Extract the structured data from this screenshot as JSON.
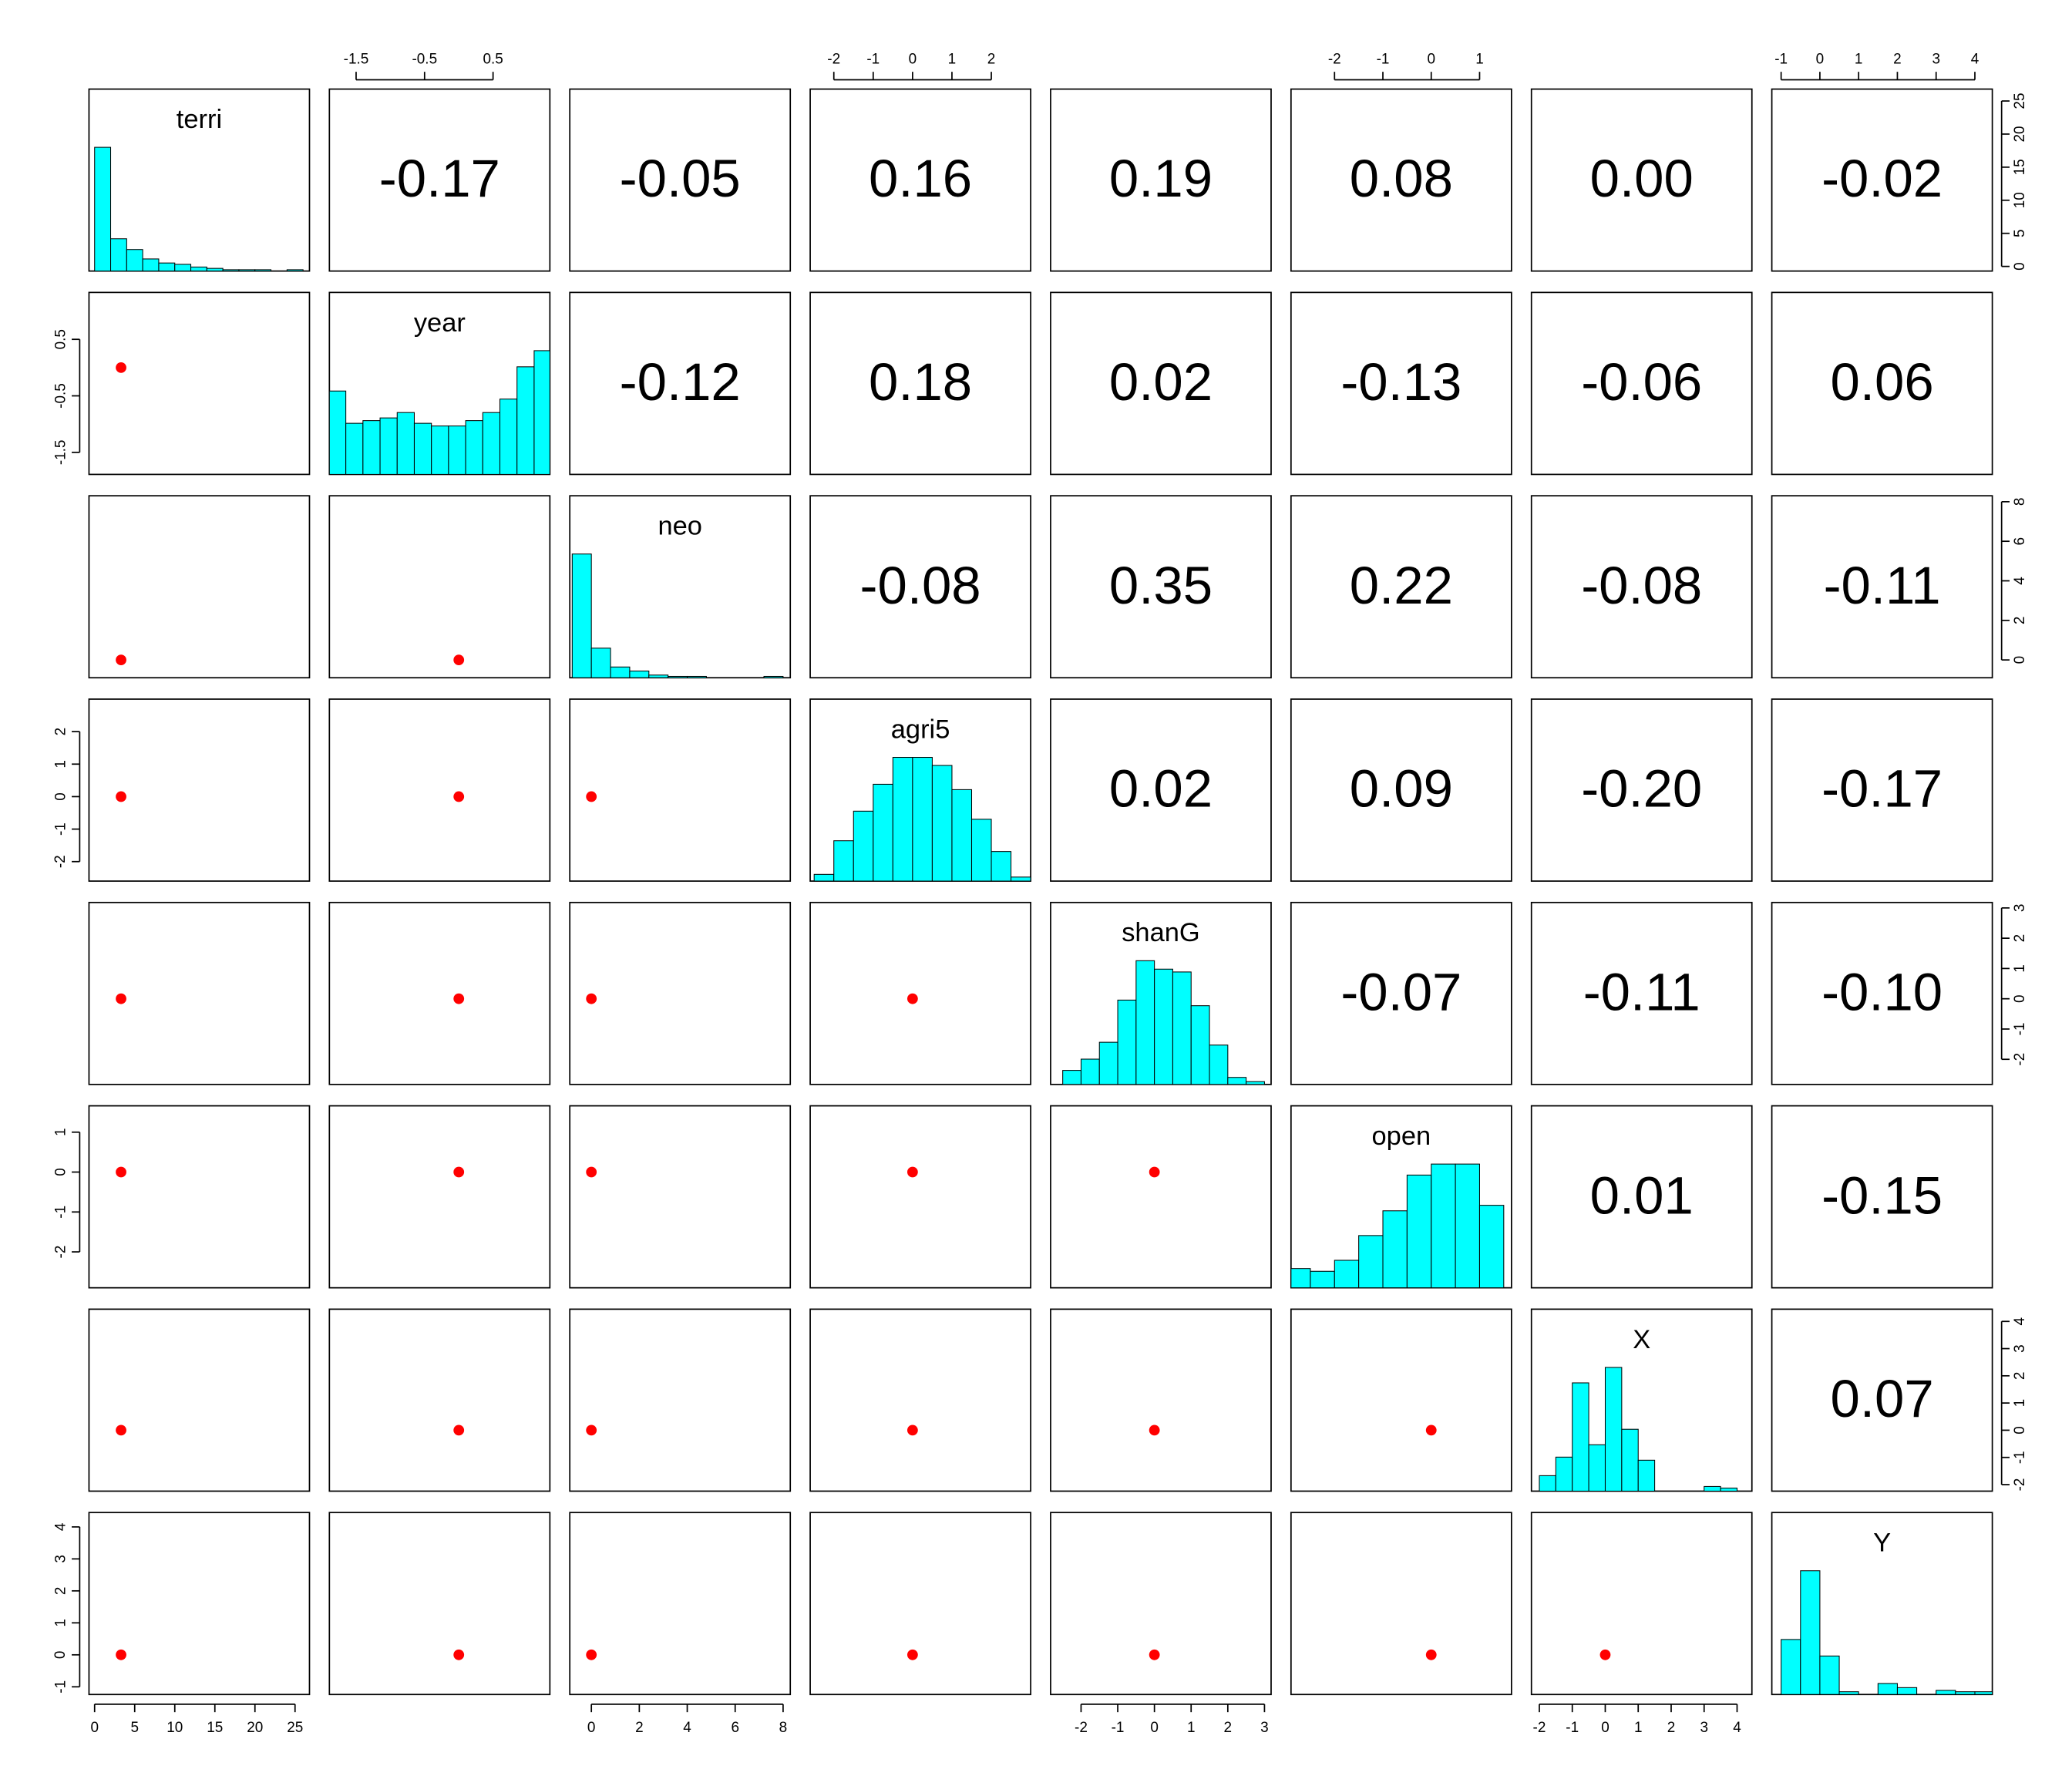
{
  "chart_data": {
    "type": "pairs",
    "variables": [
      {
        "name": "terri",
        "lim": [
          -0.7,
          26.8
        ],
        "ticks": [
          0,
          5,
          10,
          15,
          20,
          25
        ],
        "mean": 3.3,
        "hist": {
          "bins": [
            0,
            2,
            4,
            6,
            8,
            10,
            12,
            14,
            16,
            18,
            20,
            22,
            24,
            26
          ],
          "counts": [
            92,
            24,
            16,
            9,
            6,
            5,
            3,
            2,
            1,
            1,
            1,
            0,
            1
          ]
        }
      },
      {
        "name": "year",
        "lim": [
          -1.89,
          1.33
        ],
        "ticks": [
          -1.5,
          -0.5,
          0.5
        ],
        "mean": 0,
        "hist": {
          "bins": [
            -1.9,
            -1.65,
            -1.4,
            -1.15,
            -0.9,
            -0.65,
            -0.4,
            -0.15,
            0.1,
            0.35,
            0.6,
            0.85,
            1.1,
            1.35
          ],
          "counts": [
            62,
            38,
            40,
            42,
            46,
            38,
            36,
            36,
            40,
            46,
            56,
            80,
            92
          ]
        }
      },
      {
        "name": "neo",
        "lim": [
          -0.9,
          8.3
        ],
        "ticks": [
          0,
          2,
          4,
          6,
          8
        ],
        "mean": 0,
        "hist": {
          "bins": [
            -0.8,
            0,
            0.8,
            1.6,
            2.4,
            3.2,
            4,
            4.8,
            5.6,
            6.4,
            7.2,
            8
          ],
          "counts": [
            92,
            22,
            8,
            5,
            2,
            1,
            1,
            0,
            0,
            0,
            1
          ]
        }
      },
      {
        "name": "agri5",
        "lim": [
          -2.6,
          3.0
        ],
        "ticks": [
          -2,
          -1,
          0,
          1,
          2
        ],
        "mean": 0,
        "hist": {
          "bins": [
            -2.5,
            -2,
            -1.5,
            -1,
            -0.5,
            0,
            0.5,
            1,
            1.5,
            2,
            2.5,
            3
          ],
          "counts": [
            5,
            30,
            52,
            72,
            92,
            92,
            86,
            68,
            46,
            22,
            3
          ]
        }
      },
      {
        "name": "shanG",
        "lim": [
          -2.83,
          3.18
        ],
        "ticks": [
          -2,
          -1,
          0,
          1,
          2,
          3
        ],
        "mean": 0,
        "hist": {
          "bins": [
            -3,
            -2.5,
            -2,
            -1.5,
            -1,
            -0.5,
            0,
            0.5,
            1,
            1.5,
            2,
            2.5,
            3
          ],
          "counts": [
            0,
            10,
            18,
            30,
            60,
            88,
            82,
            80,
            56,
            28,
            5,
            2
          ]
        }
      },
      {
        "name": "open",
        "lim": [
          -2.9,
          1.66
        ],
        "ticks": [
          -2,
          -1,
          0,
          1
        ],
        "mean": 0,
        "hist": {
          "bins": [
            -3,
            -2.5,
            -2,
            -1.5,
            -1,
            -0.5,
            0,
            0.5,
            1,
            1.5
          ],
          "counts": [
            14,
            12,
            20,
            38,
            56,
            82,
            90,
            90,
            60
          ]
        }
      },
      {
        "name": "X",
        "lim": [
          -2.24,
          4.45
        ],
        "ticks": [
          -2,
          -1,
          0,
          1,
          2,
          3,
          4
        ],
        "mean": 0,
        "hist": {
          "bins": [
            -2,
            -1.5,
            -1,
            -0.5,
            0,
            0.5,
            1,
            1.5,
            2,
            2.5,
            3,
            3.5,
            4,
            4.5
          ],
          "counts": [
            10,
            22,
            70,
            30,
            80,
            40,
            20,
            0,
            0,
            0,
            3,
            2,
            0
          ]
        }
      },
      {
        "name": "Y",
        "lim": [
          -1.24,
          4.45
        ],
        "ticks": [
          -1,
          0,
          1,
          2,
          3,
          4
        ],
        "mean": 0,
        "hist": {
          "bins": [
            -1,
            -0.5,
            0,
            0.5,
            1,
            1.5,
            2,
            2.5,
            3,
            3.5,
            4,
            4.5
          ],
          "counts": [
            40,
            90,
            28,
            2,
            0,
            8,
            5,
            0,
            3,
            2,
            2
          ]
        }
      }
    ],
    "correlations": [
      [
        {
          "value": -0.17,
          "label": "-0.17"
        },
        {
          "value": -0.05,
          "label": "-0.05"
        },
        {
          "value": 0.16,
          "label": "0.16"
        },
        {
          "value": 0.19,
          "label": "0.19"
        },
        {
          "value": 0.08,
          "label": "0.08"
        },
        {
          "value": 0,
          "label": "0.00"
        },
        {
          "value": -0.02,
          "label": "-0.02"
        }
      ],
      [
        {
          "value": -0.12,
          "label": "-0.12"
        },
        {
          "value": 0.18,
          "label": "0.18"
        },
        {
          "value": 0.02,
          "label": "0.02"
        },
        {
          "value": -0.13,
          "label": "-0.13"
        },
        {
          "value": -0.06,
          "label": "-0.06"
        },
        {
          "value": 0.06,
          "label": "0.06"
        }
      ],
      [
        {
          "value": -0.08,
          "label": "-0.08"
        },
        {
          "value": 0.35,
          "label": "0.35"
        },
        {
          "value": 0.22,
          "label": "0.22"
        },
        {
          "value": -0.08,
          "label": "-0.08"
        },
        {
          "value": -0.11,
          "label": "-0.11"
        }
      ],
      [
        {
          "value": 0.02,
          "label": "0.02"
        },
        {
          "value": 0.09,
          "label": "0.09"
        },
        {
          "value": -0.2,
          "label": "-0.20"
        },
        {
          "value": -0.17,
          "label": "-0.17"
        }
      ],
      [
        {
          "value": -0.07,
          "label": "-0.07"
        },
        {
          "value": -0.11,
          "label": "-0.11"
        },
        {
          "value": -0.1,
          "label": "-0.10"
        }
      ],
      [
        {
          "value": 0.01,
          "label": "0.01"
        },
        {
          "value": -0.15,
          "label": "-0.15"
        }
      ],
      [
        {
          "value": 0.07,
          "label": "0.07"
        }
      ]
    ],
    "hist_color": "#00ffff",
    "mean_color": "#ff0000"
  }
}
